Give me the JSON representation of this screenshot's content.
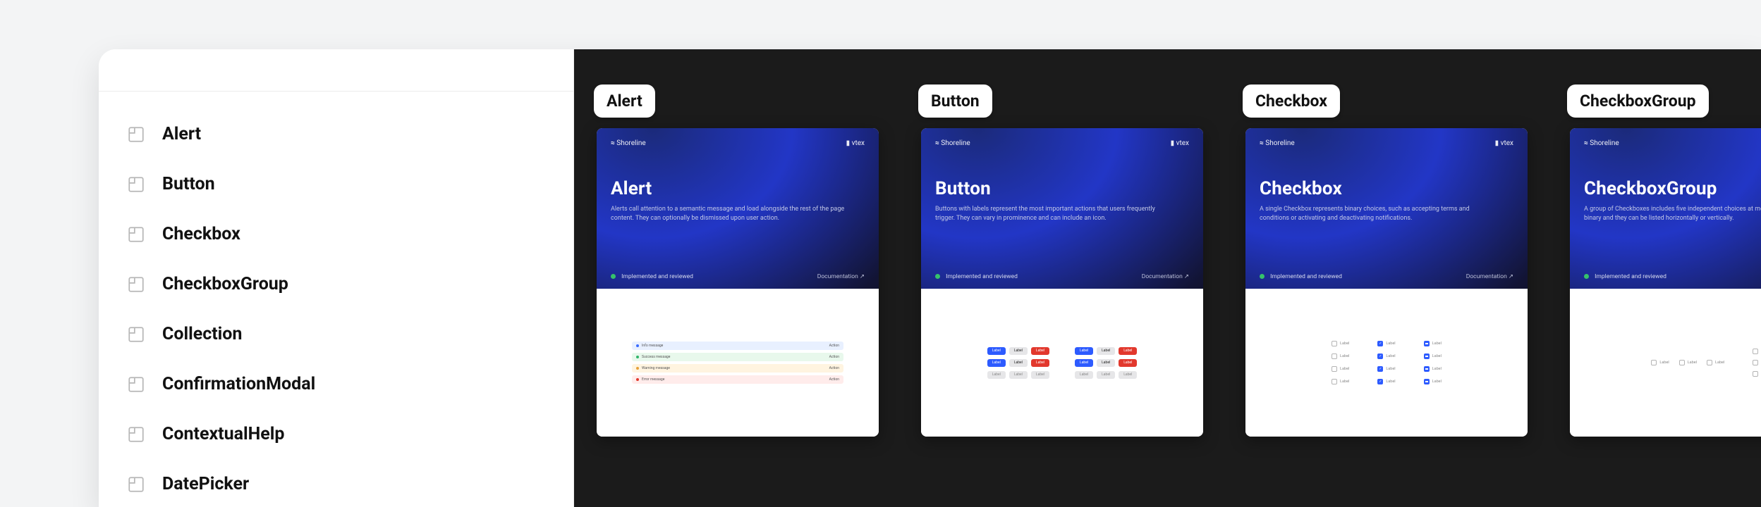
{
  "colors": {
    "page_bg": "#f3f4f5",
    "window_bg": "#ffffff",
    "canvas_bg": "#1b1b1b",
    "sidebar_border": "#ececec",
    "text_primary": "#111111",
    "hero_gradient_inner": "#2236c6",
    "hero_gradient_mid": "#1b2a7a",
    "hero_gradient_outer": "#0b0b12",
    "hero_desc_text": "#c3c9e6",
    "status_green": "#35c26b",
    "btn_blue": "#2d5bff",
    "btn_red": "#e2382d",
    "btn_gray": "#e6e6e8",
    "alert_blue_bg": "#e8f0ff",
    "alert_green_bg": "#e8f8ec",
    "alert_yellow_bg": "#fff4e0",
    "alert_red_bg": "#ffeceb"
  },
  "sidebar": {
    "items": [
      {
        "label": "Alert"
      },
      {
        "label": "Button"
      },
      {
        "label": "Checkbox"
      },
      {
        "label": "CheckboxGroup"
      },
      {
        "label": "Collection"
      },
      {
        "label": "ConfirmationModal"
      },
      {
        "label": "ContextualHelp"
      },
      {
        "label": "DatePicker"
      }
    ]
  },
  "hero_common": {
    "brand": "Shoreline",
    "vendor": "vtex",
    "status": "Implemented and reviewed",
    "doclink": "Documentation ↗"
  },
  "cards": [
    {
      "tag": "Alert",
      "title": "Alert",
      "desc": "Alerts call attention to a semantic message and load alongside the rest of the page content. They can optionally be dismissed upon user action."
    },
    {
      "tag": "Button",
      "title": "Button",
      "desc": "Buttons with labels represent the most important actions that users frequently trigger. They can vary in prominence and can include an icon."
    },
    {
      "tag": "Checkbox",
      "title": "Checkbox",
      "desc": "A single Checkbox represents binary choices, such as accepting terms and conditions or activating and deactivating notifications."
    },
    {
      "tag": "CheckboxGroup",
      "title": "CheckboxGroup",
      "desc": "A group of Checkboxes includes five independent choices at most. Each option is binary and they can be listed horizontally or vertically."
    }
  ],
  "alert_preview": {
    "rows": [
      {
        "bg": "#e8f0ff",
        "dot": "#3a6bff",
        "text": "Info message",
        "action": "Action"
      },
      {
        "bg": "#e8f8ec",
        "dot": "#2fb56a",
        "text": "Success message",
        "action": "Action"
      },
      {
        "bg": "#fff4e0",
        "dot": "#e6a13a",
        "text": "Warning message",
        "action": "Action"
      },
      {
        "bg": "#ffeceb",
        "dot": "#e2382d",
        "text": "Error message",
        "action": "Action"
      }
    ]
  },
  "button_preview": {
    "cols": [
      [
        [
          {
            "bg": "#2d5bff",
            "label": "Label"
          },
          {
            "bg": "#e6e6e8",
            "label": "Label",
            "fg": "#222"
          },
          {
            "bg": "#e2382d",
            "label": "Label"
          }
        ],
        [
          {
            "bg": "#2d5bff",
            "label": "Label"
          },
          {
            "bg": "#e6e6e8",
            "label": "Label",
            "fg": "#222"
          },
          {
            "bg": "#e2382d",
            "label": "Label"
          }
        ],
        [
          {
            "bg": "#e6e6e8",
            "label": "Label",
            "fg": "#888"
          },
          {
            "bg": "#e6e6e8",
            "label": "Label",
            "fg": "#888"
          },
          {
            "bg": "#e6e6e8",
            "label": "Label",
            "fg": "#888"
          }
        ]
      ],
      [
        [
          {
            "bg": "#2d5bff",
            "label": "Label"
          },
          {
            "bg": "#e6e6e8",
            "label": "Label",
            "fg": "#222"
          },
          {
            "bg": "#e2382d",
            "label": "Label"
          }
        ],
        [
          {
            "bg": "#2d5bff",
            "label": "Label"
          },
          {
            "bg": "#e6e6e8",
            "label": "Label",
            "fg": "#222"
          },
          {
            "bg": "#e2382d",
            "label": "Label"
          }
        ],
        [
          {
            "bg": "#e6e6e8",
            "label": "Label",
            "fg": "#888"
          },
          {
            "bg": "#e6e6e8",
            "label": "Label",
            "fg": "#888"
          },
          {
            "bg": "#e6e6e8",
            "label": "Label",
            "fg": "#888"
          }
        ]
      ]
    ]
  },
  "checkbox_preview": {
    "cols": [
      [
        {
          "state": "unchecked",
          "label": "Label"
        },
        {
          "state": "unchecked",
          "label": "Label"
        },
        {
          "state": "unchecked",
          "label": "Label"
        },
        {
          "state": "unchecked",
          "label": "Label"
        }
      ],
      [
        {
          "state": "checked",
          "label": "Label"
        },
        {
          "state": "checked",
          "label": "Label"
        },
        {
          "state": "checked",
          "label": "Label"
        },
        {
          "state": "checked",
          "label": "Label"
        }
      ],
      [
        {
          "state": "indet",
          "label": "Label"
        },
        {
          "state": "indet",
          "label": "Label"
        },
        {
          "state": "indet",
          "label": "Label"
        },
        {
          "state": "indet",
          "label": "Label"
        }
      ]
    ]
  },
  "checkboxgroup_preview": {
    "row_labels": [
      "Label",
      "Label",
      "Label"
    ],
    "col_labels": [
      "Label",
      "Label",
      "Label"
    ]
  }
}
